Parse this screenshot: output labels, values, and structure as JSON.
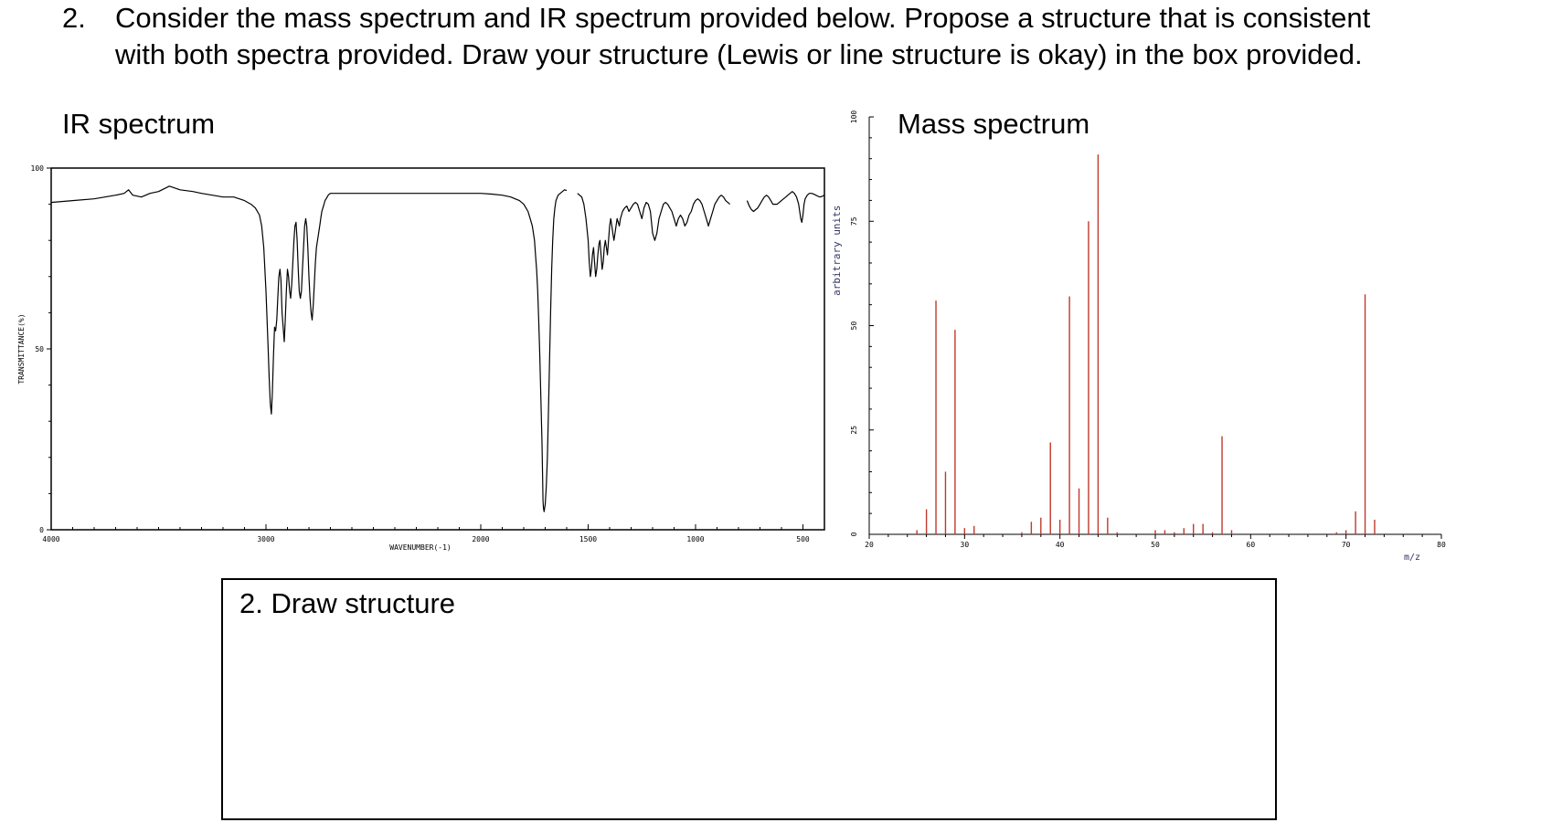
{
  "question": {
    "number": "2.",
    "line1": "Consider the mass spectrum and IR spectrum provided below. Propose a structure that is consistent",
    "line2": "with both spectra provided. Draw your structure (Lewis or line structure is okay) in the box provided."
  },
  "ir_title": "IR spectrum",
  "ms_title": "Mass spectrum",
  "draw_box": {
    "label": "2. Draw structure"
  },
  "colors": {
    "ms_bar": "#c0392b",
    "axis": "#000000"
  },
  "chart_data": [
    {
      "type": "line",
      "title": "",
      "xlabel": "WAVENUMBER(-1)",
      "ylabel": "TRANSMITTANCE(%)",
      "xlim": [
        4000,
        400
      ],
      "ylim": [
        0,
        100
      ],
      "x_reversed": true,
      "xticks": [
        "4000",
        "3000",
        "2000",
        "1500",
        "1000",
        "500"
      ],
      "yticks": [
        "0",
        "50",
        "100"
      ],
      "grid": false,
      "segments": [
        {
          "x": [
            4000,
            3900,
            3800,
            3750,
            3700,
            3660,
            3640,
            3620,
            3580,
            3540,
            3500,
            3450,
            3400,
            3340,
            3300,
            3250,
            3200,
            3150,
            3100,
            3070,
            3050,
            3030,
            3020,
            3010,
            3000,
            2995,
            2990,
            2985,
            2980,
            2975,
            2970,
            2965,
            2960,
            2955,
            2950,
            2945,
            2940,
            2935,
            2930,
            2925,
            2920,
            2915,
            2910,
            2905,
            2900,
            2895,
            2890,
            2885,
            2880,
            2875,
            2870,
            2865,
            2860,
            2855,
            2850,
            2845,
            2840,
            2835,
            2830,
            2825,
            2820,
            2815,
            2810,
            2805,
            2800,
            2795,
            2790,
            2785,
            2780,
            2775,
            2770,
            2765,
            2760,
            2755,
            2750,
            2745,
            2740,
            2735,
            2730,
            2725,
            2720,
            2715,
            2710,
            2705,
            2700,
            2690,
            2680,
            2660,
            2640,
            2600,
            2500,
            2400,
            2300,
            2200,
            2100,
            2000,
            1950,
            1900,
            1860,
            1840,
            1820,
            1800,
            1790,
            1780,
            1770,
            1760,
            1755,
            1750,
            1745,
            1740,
            1735,
            1730,
            1725,
            1720,
            1715,
            1712,
            1710,
            1708,
            1705,
            1700,
            1695,
            1690,
            1685,
            1680,
            1675,
            1670,
            1665,
            1660,
            1655,
            1650,
            1640,
            1630,
            1620,
            1610,
            1600
          ],
          "y": [
            90.5,
            91,
            91.5,
            92,
            92.5,
            93,
            94,
            92.5,
            92,
            93,
            93.5,
            95,
            94,
            93.5,
            93,
            92.5,
            92,
            92,
            91,
            90,
            89,
            87,
            84,
            78,
            66,
            58,
            50,
            42,
            35,
            32,
            38,
            48,
            56,
            55,
            58,
            64,
            70,
            72,
            69,
            60,
            56,
            52,
            58,
            66,
            72,
            70,
            66,
            64,
            68,
            74,
            80,
            84,
            85,
            80,
            72,
            66,
            64,
            66,
            72,
            78,
            84,
            86,
            84,
            78,
            70,
            64,
            60,
            58,
            62,
            68,
            74,
            78,
            80,
            82,
            84,
            86,
            88,
            89,
            90,
            91,
            91.5,
            92,
            92.5,
            92.8,
            93,
            93,
            93,
            93,
            93,
            93,
            93,
            93,
            93,
            93,
            93,
            93,
            92.8,
            92.5,
            92,
            91.5,
            91,
            90,
            89,
            88,
            86,
            84,
            82,
            80,
            76,
            72,
            66,
            58,
            48,
            36,
            24,
            14,
            8,
            6,
            5,
            7,
            12,
            20,
            32,
            46,
            60,
            72,
            80,
            86,
            89,
            91,
            92.5,
            93,
            93.5,
            94,
            93.8
          ]
        },
        {
          "x": [
            1550,
            1540,
            1530,
            1520,
            1510,
            1500,
            1495,
            1490,
            1485,
            1480,
            1475,
            1470,
            1465,
            1460,
            1455,
            1450,
            1445,
            1440,
            1435,
            1430,
            1425,
            1420,
            1415,
            1410,
            1405,
            1400,
            1395,
            1390,
            1385,
            1380,
            1375,
            1370,
            1365,
            1360,
            1355,
            1350,
            1340,
            1330,
            1320,
            1310,
            1300,
            1290,
            1280,
            1270,
            1260,
            1250,
            1240,
            1230,
            1220,
            1210,
            1200,
            1190,
            1180,
            1170,
            1160,
            1150,
            1140,
            1130,
            1120,
            1110,
            1100,
            1090,
            1080,
            1070,
            1060,
            1050,
            1040,
            1030,
            1020,
            1010,
            1000,
            990,
            980,
            970,
            960,
            950,
            940,
            930,
            920,
            910,
            900,
            890,
            880,
            870,
            860,
            850,
            840
          ],
          "y": [
            93,
            92.5,
            92,
            90,
            86,
            80,
            74,
            70,
            72,
            76,
            78,
            74,
            70,
            72,
            76,
            79,
            80,
            76,
            72,
            74,
            78,
            80,
            78,
            76,
            80,
            84,
            86,
            84,
            82,
            80,
            82,
            84,
            86,
            85,
            84,
            86,
            88,
            89,
            89.5,
            88,
            89,
            90,
            90.5,
            90,
            88,
            86,
            89,
            90.5,
            90,
            88,
            82,
            80,
            82,
            86,
            88,
            90,
            90.5,
            90,
            89,
            88,
            86,
            84,
            86,
            87,
            86,
            84,
            85,
            87,
            88,
            90,
            91,
            91.5,
            91,
            90,
            88,
            86,
            84,
            86,
            88,
            90,
            91,
            92,
            92.5,
            92,
            91,
            90.5,
            90
          ]
        },
        {
          "x": [
            760,
            750,
            740,
            730,
            720,
            710,
            700,
            690,
            680,
            670,
            660,
            650,
            640,
            620,
            600,
            580,
            570,
            560,
            550,
            540,
            530,
            520,
            510,
            505,
            500,
            495,
            490,
            480,
            470,
            460,
            450,
            440,
            430,
            420,
            410,
            400
          ],
          "y": [
            91,
            89.5,
            88.5,
            88,
            88.5,
            89,
            90,
            91,
            92,
            92.5,
            92,
            91,
            90,
            90,
            91,
            92,
            92.5,
            93,
            93.5,
            93,
            92,
            90,
            86,
            85,
            87,
            90,
            91.5,
            92.5,
            93,
            93,
            92.8,
            92.5,
            92.2,
            92,
            92.2,
            92.5
          ]
        }
      ]
    },
    {
      "type": "bar",
      "title": "",
      "xlabel": "m/z",
      "ylabel": "arbitrary units",
      "xlim": [
        20,
        80
      ],
      "ylim": [
        0,
        100
      ],
      "xticks": [
        "20",
        "30",
        "40",
        "50",
        "60",
        "70",
        "80"
      ],
      "yticks": [
        "0",
        "25",
        "50",
        "75",
        "100"
      ],
      "x": [
        25,
        26,
        27,
        28,
        29,
        30,
        31,
        36,
        37,
        38,
        39,
        40,
        41,
        42,
        43,
        44,
        45,
        46,
        50,
        51,
        52,
        53,
        54,
        55,
        56,
        57,
        58,
        69,
        70,
        71,
        72,
        73
      ],
      "values": [
        1,
        6,
        56,
        15,
        49,
        1.5,
        2,
        0.5,
        3,
        4,
        22,
        3.5,
        57,
        11,
        75,
        91,
        4,
        0.5,
        1,
        1,
        0.5,
        1.5,
        2.5,
        2.5,
        0.5,
        23.5,
        1,
        0.5,
        1,
        5.5,
        57.5,
        3.5
      ]
    }
  ]
}
